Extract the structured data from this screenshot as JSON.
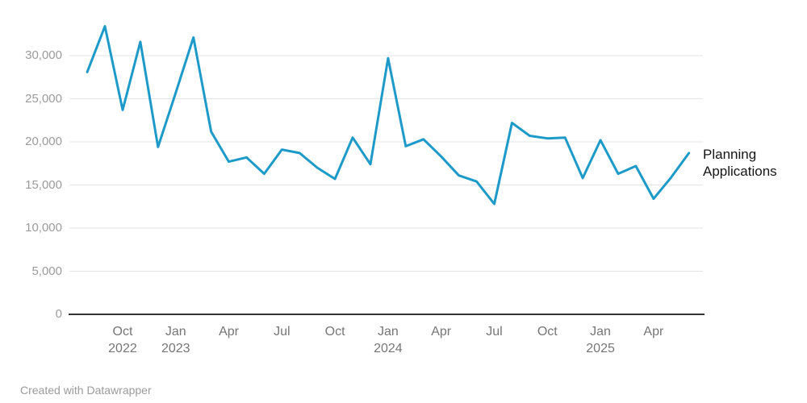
{
  "chart_data": {
    "type": "line",
    "title": "",
    "series_label": "Planning Applications",
    "color": "#1e9ac8",
    "x": [
      "Aug 2022",
      "Sep 2022",
      "Oct 2022",
      "Nov 2022",
      "Dec 2022",
      "Jan 2023",
      "Feb 2023",
      "Mar 2023",
      "Apr 2023",
      "May 2023",
      "Jun 2023",
      "Jul 2023",
      "Aug 2023",
      "Sep 2023",
      "Oct 2023",
      "Nov 2023",
      "Dec 2023",
      "Jan 2024",
      "Feb 2024",
      "Mar 2024",
      "Apr 2024",
      "May 2024",
      "Jun 2024",
      "Jul 2024",
      "Aug 2024",
      "Sep 2024",
      "Oct 2024",
      "Nov 2024",
      "Dec 2024",
      "Jan 2025",
      "Feb 2025",
      "Mar 2025",
      "Apr 2025",
      "May 2025",
      "Jun 2025"
    ],
    "values": [
      28100,
      33400,
      23700,
      31600,
      19400,
      25700,
      32100,
      21200,
      17700,
      18200,
      16300,
      19100,
      18700,
      17000,
      15700,
      20500,
      17400,
      29700,
      19500,
      20300,
      18300,
      16100,
      15400,
      12800,
      22200,
      20700,
      20400,
      20500,
      15800,
      20200,
      16300,
      17200,
      13400,
      15900,
      18700
    ],
    "xlabel": "",
    "ylabel": "",
    "ylim": [
      0,
      33500
    ],
    "grid": "horizontal",
    "legend_position": "right-of-line-end",
    "y_ticks": [
      0,
      5000,
      10000,
      15000,
      20000,
      25000,
      30000
    ],
    "y_tick_labels": [
      "0",
      "5,000",
      "10,000",
      "15,000",
      "20,000",
      "25,000",
      "30,000"
    ],
    "x_ticks": [
      {
        "index": 2,
        "month": "Oct",
        "year": "2022"
      },
      {
        "index": 5,
        "month": "Jan",
        "year": "2023"
      },
      {
        "index": 8,
        "month": "Apr",
        "year": ""
      },
      {
        "index": 11,
        "month": "Jul",
        "year": ""
      },
      {
        "index": 14,
        "month": "Oct",
        "year": ""
      },
      {
        "index": 17,
        "month": "Jan",
        "year": "2024"
      },
      {
        "index": 20,
        "month": "Apr",
        "year": ""
      },
      {
        "index": 23,
        "month": "Jul",
        "year": ""
      },
      {
        "index": 26,
        "month": "Oct",
        "year": ""
      },
      {
        "index": 29,
        "month": "Jan",
        "year": "2025"
      },
      {
        "index": 32,
        "month": "Apr",
        "year": ""
      }
    ]
  },
  "colors": {
    "line": "#1e9ac8",
    "gridline": "#e4e4e4",
    "axis": "#333333",
    "y_tick_text": "#9b9b9b",
    "x_tick_text": "#767676",
    "series_label_text": "#161616",
    "footer_text": "#9b9b9b",
    "background": "#ffffff"
  },
  "footer": {
    "credit": "Created with Datawrapper"
  }
}
